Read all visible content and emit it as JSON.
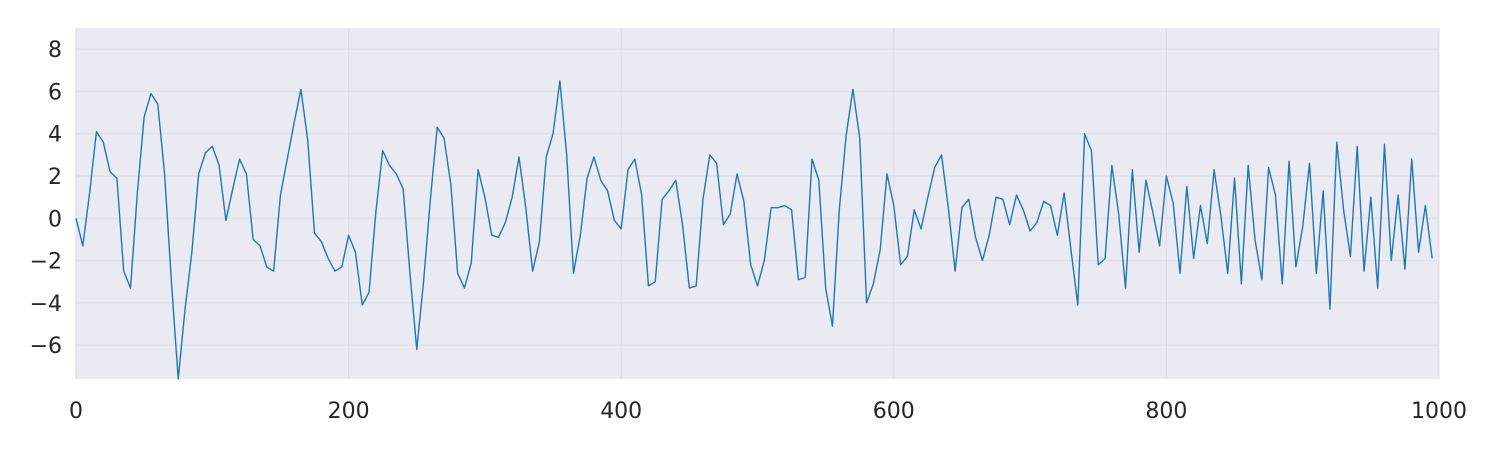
{
  "chart_data": {
    "type": "line",
    "title": "",
    "xlabel": "",
    "ylabel": "",
    "xlim": [
      0,
      1000
    ],
    "ylim": [
      -7.6,
      9.0
    ],
    "grid": true,
    "legend": "none",
    "colors": {
      "line": "#1f77b4",
      "plot_bg": "#eaeaf2",
      "grid": "#dcdce4",
      "text": "#262626"
    },
    "x_ticks": [
      0,
      200,
      400,
      600,
      800,
      1000
    ],
    "y_ticks": [
      8,
      6,
      4,
      2,
      0,
      -2,
      -4,
      -6
    ],
    "x_tick_labels": [
      "0",
      "200",
      "400",
      "600",
      "800",
      "1000"
    ],
    "y_tick_labels": [
      "8",
      "6",
      "4",
      "2",
      "0",
      "−2",
      "−4",
      "−6"
    ],
    "series": [
      {
        "values": [
          0.0,
          -1.3,
          1.2,
          4.1,
          3.6,
          2.2,
          1.9,
          -2.5,
          -3.3,
          1.2,
          4.8,
          5.9,
          5.4,
          2.1,
          -3.0,
          -7.6,
          -4.3,
          -1.6,
          2.1,
          3.1,
          3.4,
          2.5,
          -0.1,
          1.4,
          2.8,
          2.1,
          -1.0,
          -1.3,
          -2.3,
          -2.5,
          1.1,
          2.8,
          4.5,
          6.1,
          3.7,
          -0.7,
          -1.1,
          -1.9,
          -2.5,
          -2.3,
          -0.8,
          -1.6,
          -4.1,
          -3.5,
          0.3,
          3.2,
          2.5,
          2.1,
          1.4,
          -2.6,
          -6.2,
          -3.0,
          0.9,
          4.3,
          3.8,
          1.6,
          -2.6,
          -3.3,
          -2.1,
          2.3,
          1.0,
          -0.8,
          -0.9,
          -0.2,
          1.0,
          2.9,
          0.5,
          -2.5,
          -1.1,
          2.9,
          4.0,
          6.5,
          3.0,
          -2.6,
          -0.8,
          1.9,
          2.9,
          1.8,
          1.3,
          -0.1,
          -0.5,
          2.3,
          2.8,
          1.1,
          -3.2,
          -3.0,
          0.9,
          1.3,
          1.8,
          -0.3,
          -3.3,
          -3.2,
          0.9,
          3.0,
          2.6,
          -0.3,
          0.2,
          2.1,
          0.8,
          -2.2,
          -3.2,
          -2.0,
          0.5,
          0.5,
          0.6,
          0.4,
          -2.9,
          -2.8,
          2.8,
          1.8,
          -3.3,
          -5.1,
          0.4,
          3.9,
          6.1,
          3.8,
          -4.0,
          -3.1,
          -1.5,
          2.1,
          0.6,
          -2.2,
          -1.8,
          0.4,
          -0.5,
          1.0,
          2.4,
          3.0,
          0.5,
          -2.5,
          0.5,
          0.9,
          -0.9,
          -2.0,
          -0.8,
          1.0,
          0.9,
          -0.3,
          1.1,
          0.4,
          -0.6,
          -0.2,
          0.8,
          0.6,
          -0.8,
          1.2,
          -1.5,
          -4.1,
          4.0,
          3.2,
          -2.2,
          -1.9,
          2.5,
          0.2,
          -3.3,
          2.3,
          -1.6,
          1.8,
          0.3,
          -1.3,
          2.0,
          0.7,
          -2.6,
          1.5,
          -1.9,
          0.6,
          -1.2,
          2.3,
          0.1,
          -2.6,
          1.9,
          -3.1,
          2.5,
          -1.0,
          -2.9,
          2.4,
          1.1,
          -3.1,
          2.7,
          -2.3,
          -0.4,
          2.6,
          -2.6,
          1.3,
          -4.3,
          3.6,
          0.4,
          -1.8,
          3.4,
          -2.5,
          1.0,
          -3.3,
          3.5,
          -2.0,
          1.1,
          -2.4,
          2.8,
          -1.6,
          0.6,
          -1.9
        ]
      }
    ],
    "series_render": [
      {
        "x_start": 0,
        "x_step": 5
      }
    ]
  }
}
